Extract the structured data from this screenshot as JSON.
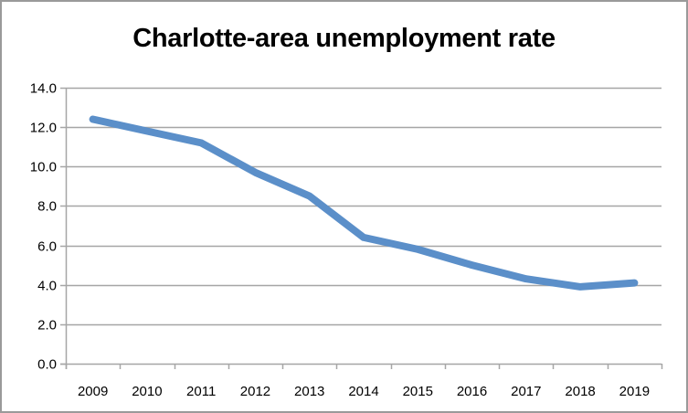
{
  "chart_data": {
    "type": "line",
    "title": "Charlotte-area unemployment rate",
    "xlabel": "",
    "ylabel": "",
    "categories": [
      "2009",
      "2010",
      "2011",
      "2012",
      "2013",
      "2014",
      "2015",
      "2016",
      "2017",
      "2018",
      "2019"
    ],
    "series": [
      {
        "name": "Unemployment rate",
        "color": "#5b8fc9",
        "values": [
          12.4,
          11.8,
          11.2,
          9.7,
          8.5,
          6.4,
          5.8,
          5.0,
          4.3,
          3.9,
          4.1
        ]
      }
    ],
    "ylim": [
      0,
      14
    ],
    "yticks": [
      "0.0",
      "2.0",
      "4.0",
      "6.0",
      "8.0",
      "10.0",
      "12.0",
      "14.0"
    ],
    "grid": true,
    "legend": "none"
  },
  "colors": {
    "line": "#5b8fc9",
    "grid": "#a6a6a6",
    "axis": "#a6a6a6",
    "frame": "#9a9a9a"
  }
}
